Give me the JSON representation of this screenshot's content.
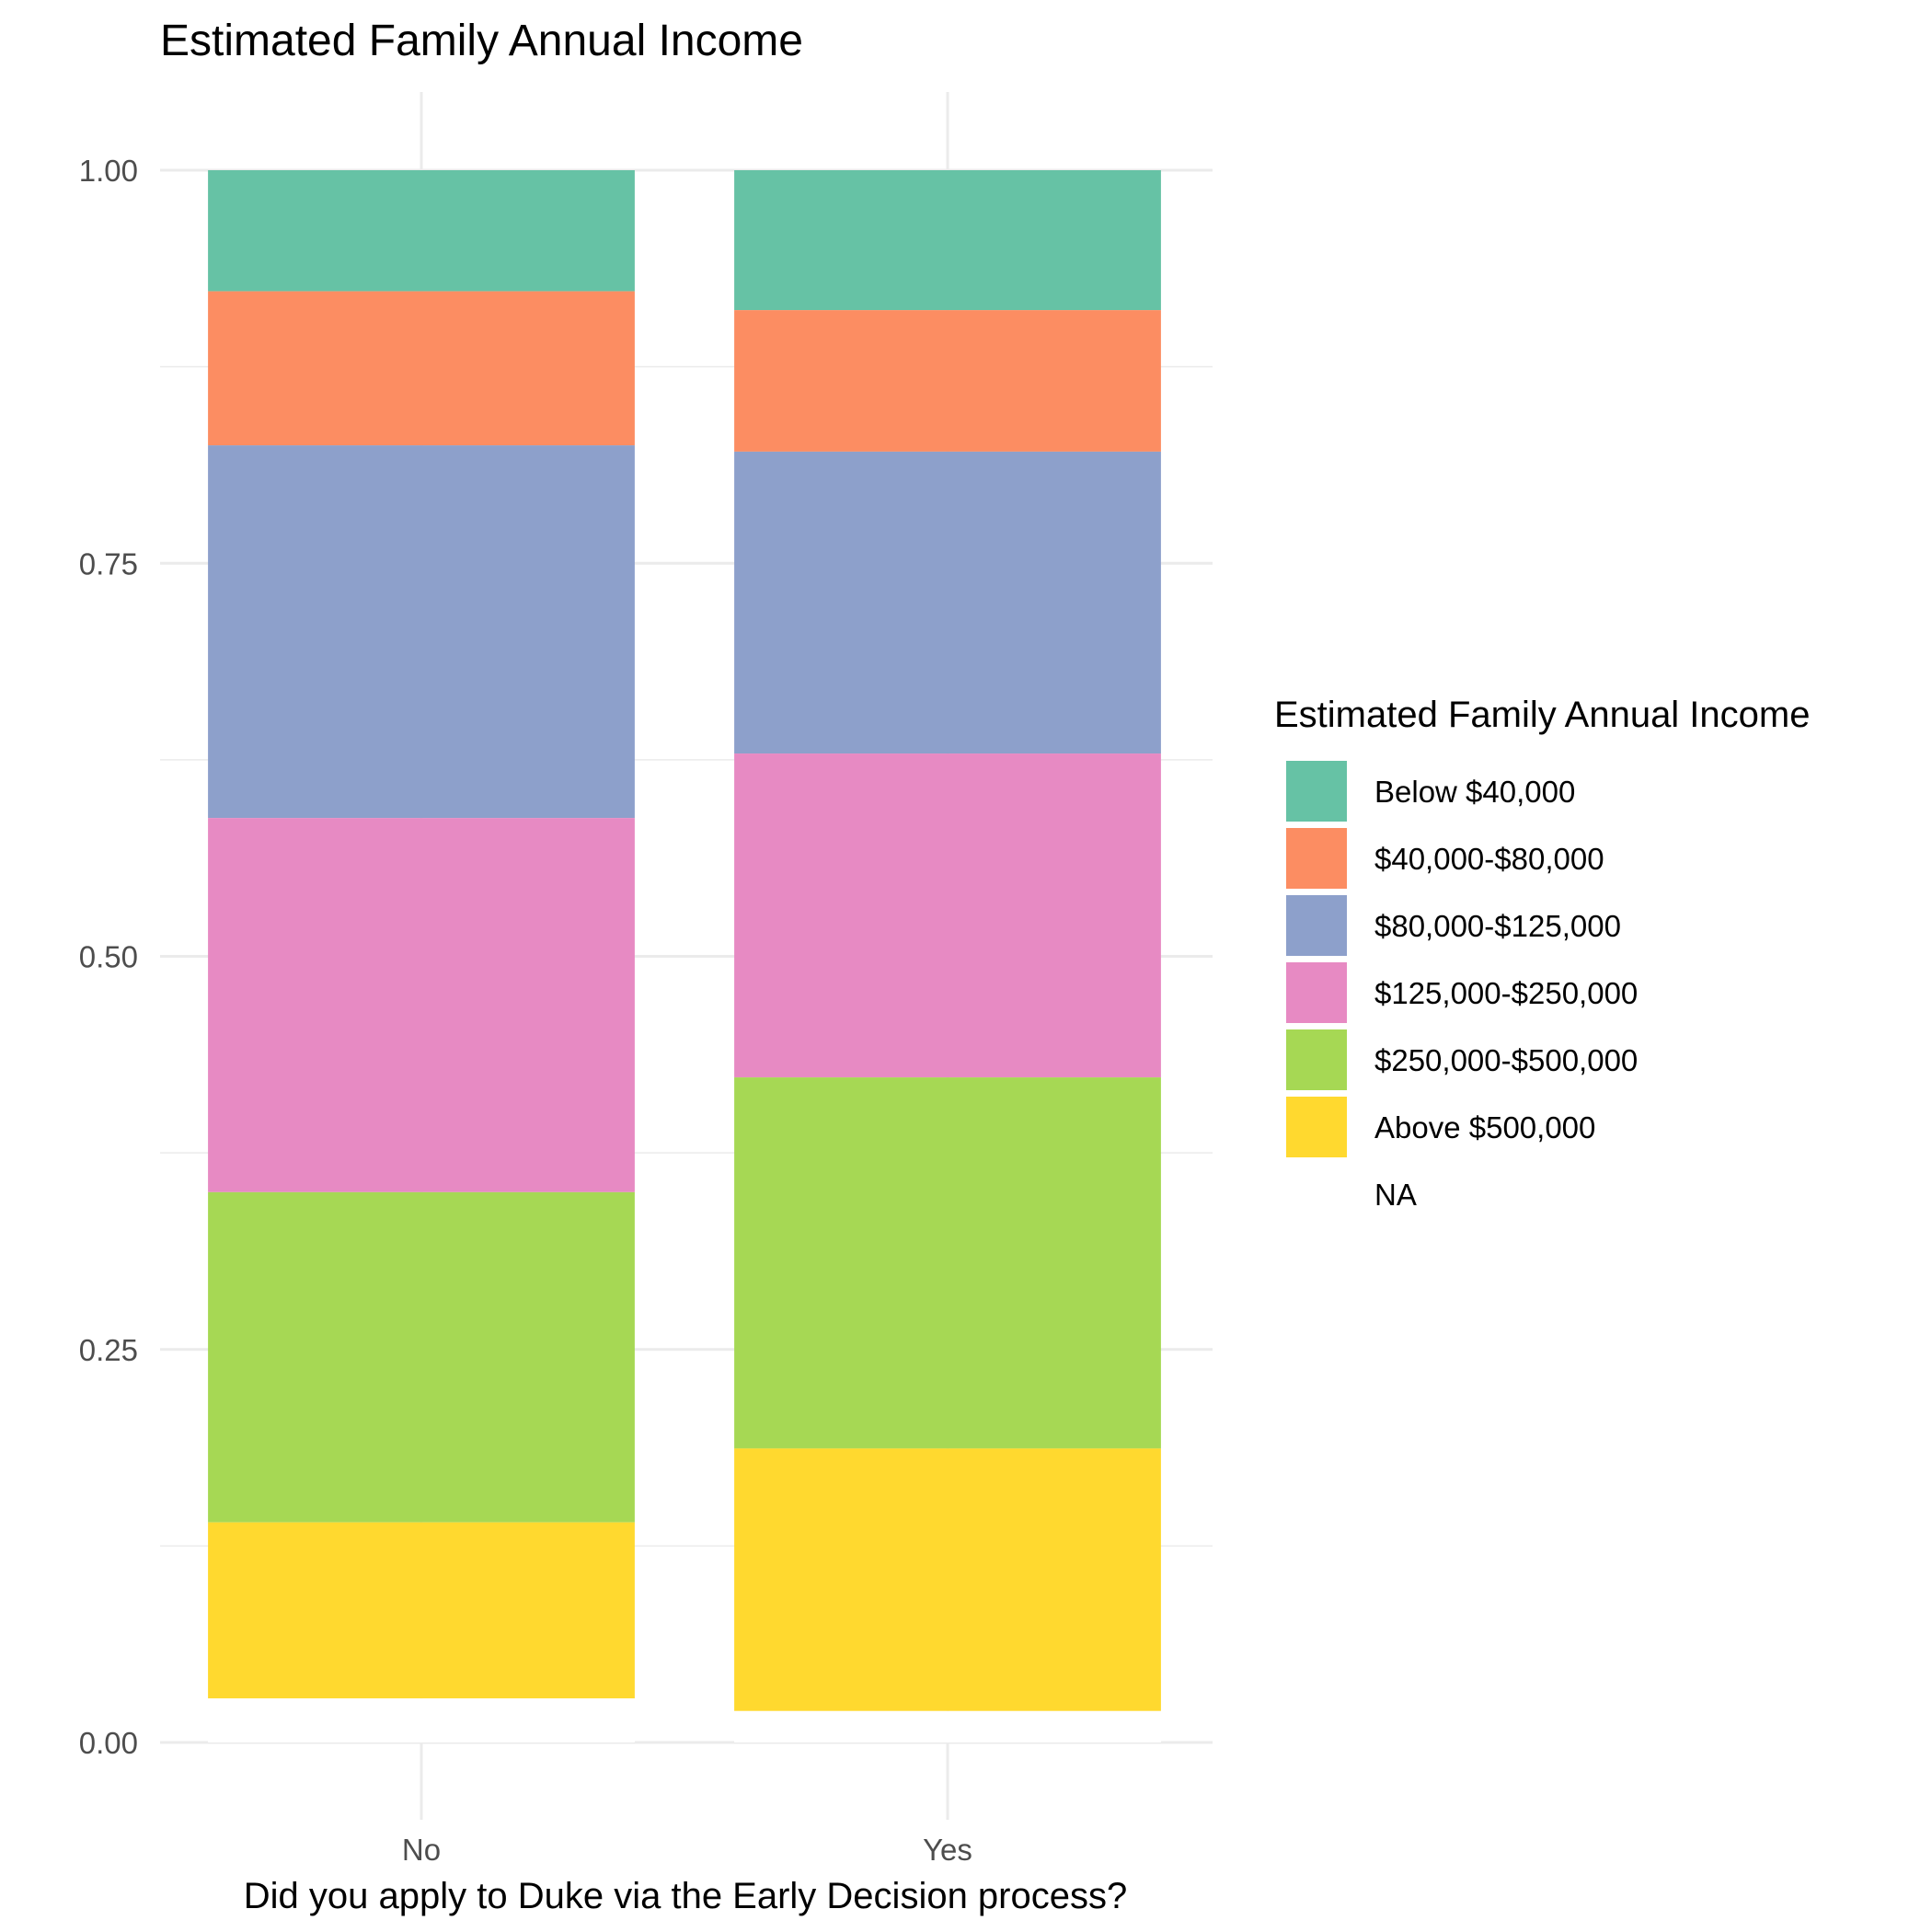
{
  "chart_data": {
    "type": "bar",
    "stacked": true,
    "title": "Estimated Family Annual Income",
    "xlabel": "Did you apply to Duke via the Early Decision process?",
    "ylabel": "",
    "ylim": [
      0,
      1
    ],
    "yticks": [
      "0.00",
      "0.25",
      "0.50",
      "0.75",
      "1.00"
    ],
    "categories": [
      "No",
      "Yes"
    ],
    "legend": {
      "title": "Estimated Family Annual Income",
      "position": "right"
    },
    "series": [
      {
        "name": "Below $40,000",
        "color": "#66c2a5",
        "values": [
          0.077,
          0.089
        ]
      },
      {
        "name": "$40,000-$80,000",
        "color": "#fc8d62",
        "values": [
          0.098,
          0.09
        ]
      },
      {
        "name": "$80,000-$125,000",
        "color": "#8da0cb",
        "values": [
          0.237,
          0.192
        ]
      },
      {
        "name": "$125,000-$250,000",
        "color": "#e78ac3",
        "values": [
          0.238,
          0.206
        ]
      },
      {
        "name": "$250,000-$500,000",
        "color": "#a6d854",
        "values": [
          0.21,
          0.236
        ]
      },
      {
        "name": "Above $500,000",
        "color": "#ffd92f",
        "values": [
          0.112,
          0.167
        ]
      },
      {
        "name": "NA",
        "color": "#ffffff",
        "values": [
          0.028,
          0.02
        ]
      }
    ],
    "grid": true
  }
}
